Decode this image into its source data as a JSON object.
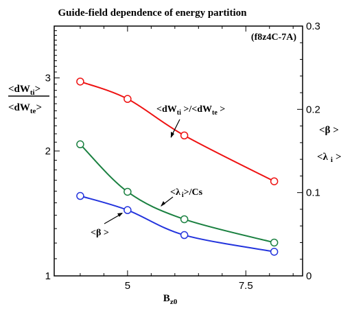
{
  "chart_data": {
    "type": "line",
    "title": "Guide-field dependence of energy partition",
    "annotation_case": "(f8z4C-7A)",
    "xlabel": {
      "main": "B",
      "sub": "z0"
    },
    "left_ylabel": {
      "numerator": {
        "main": "<dW",
        "sub": "ti",
        "end": ">"
      },
      "denominator": {
        "main": "<dW",
        "sub": "te",
        "end": ">"
      }
    },
    "right_ylabel": {
      "line1": "<β >",
      "line2": {
        "main": "<λ",
        "sub": "i",
        "end": ">"
      }
    },
    "xlim": [
      3.45,
      8.7
    ],
    "left_ylim": [
      1,
      4
    ],
    "right_ylim": [
      0,
      0.3
    ],
    "x_ticks": [
      {
        "value": 5,
        "label": "5"
      },
      {
        "value": 7.5,
        "label": "7.5"
      }
    ],
    "left_y_ticks": [
      {
        "value": 1,
        "label": "1"
      },
      {
        "value": 2,
        "label": "2"
      },
      {
        "value": 3,
        "label": "3"
      }
    ],
    "right_y_ticks": [
      {
        "value": 0,
        "label": "0"
      },
      {
        "value": 0.1,
        "label": "0.1"
      },
      {
        "value": 0.2,
        "label": "0.2"
      },
      {
        "value": 0.3,
        "label": "0.3"
      }
    ],
    "series": [
      {
        "key": "dwti_dwte",
        "axis": "left",
        "color": "#ee1111",
        "x": [
          4.0,
          5.0,
          6.2,
          8.1
        ],
        "y": [
          2.94,
          2.67,
          2.18,
          1.69
        ]
      },
      {
        "key": "lambda_cs",
        "axis": "right",
        "color": "#1a8040",
        "x": [
          4.0,
          5.0,
          6.2,
          8.1
        ],
        "y": [
          0.158,
          0.101,
          0.068,
          0.04
        ]
      },
      {
        "key": "beta",
        "axis": "right",
        "color": "#2233dd",
        "x": [
          4.0,
          5.0,
          6.2,
          8.1
        ],
        "y": [
          0.096,
          0.079,
          0.049,
          0.029
        ]
      }
    ],
    "annotations": [
      {
        "key": "ann_dw",
        "parts": {
          "main1": "<dW",
          "sub1": "ti",
          "mid": " >/<dW",
          "sub2": "te",
          "end": " >"
        }
      },
      {
        "key": "ann_lambda",
        "parts": {
          "main": "<λ",
          "sub": "i",
          "end": ">/Cs"
        }
      },
      {
        "key": "ann_beta",
        "text": "<β >"
      }
    ]
  }
}
